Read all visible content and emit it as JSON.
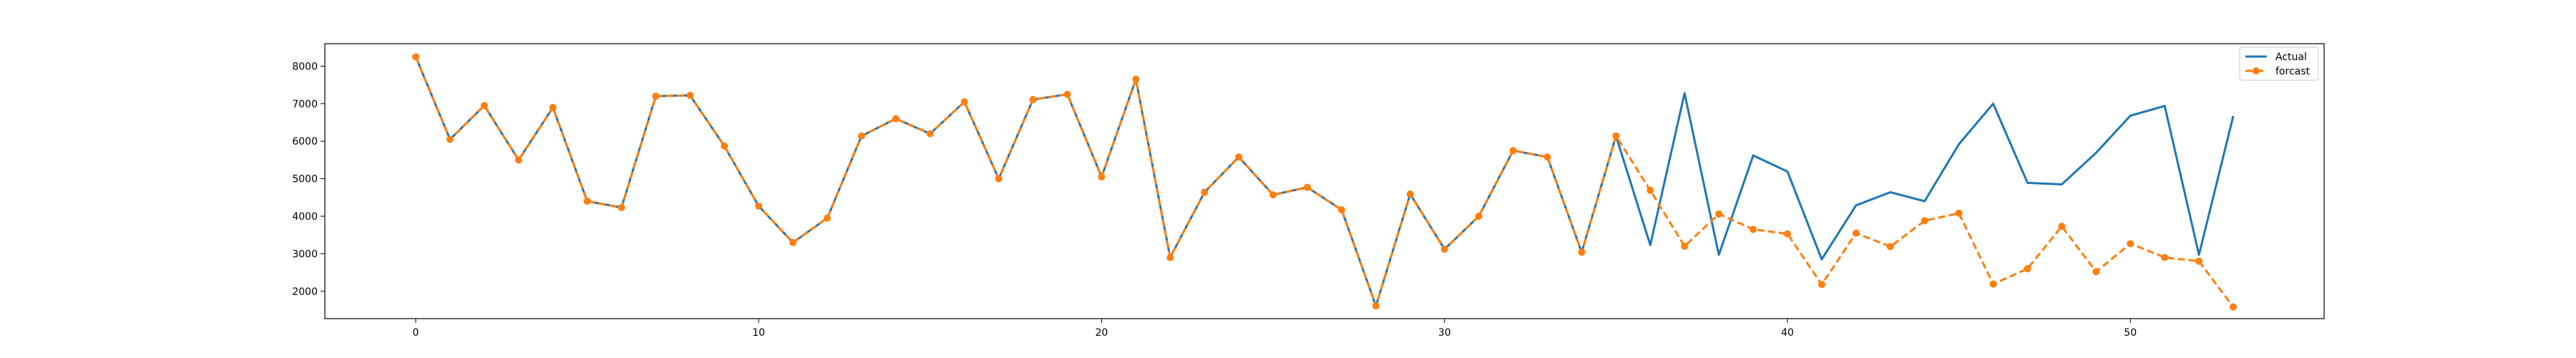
{
  "chart_data": {
    "type": "line",
    "title": "",
    "xlabel": "",
    "ylabel": "",
    "xlim": [
      -2.65,
      55.65
    ],
    "ylim": [
      1270,
      8600
    ],
    "xticks": [
      0,
      10,
      20,
      30,
      40,
      50
    ],
    "yticks": [
      2000,
      3000,
      4000,
      5000,
      6000,
      7000,
      8000
    ],
    "grid": false,
    "legend": {
      "position": "top-right"
    },
    "series": [
      {
        "name": "Actual",
        "color": "#1f77b4",
        "style": "solid",
        "marker": "none",
        "x": [
          0,
          1,
          2,
          3,
          4,
          5,
          6,
          7,
          8,
          9,
          10,
          11,
          12,
          13,
          14,
          15,
          16,
          17,
          18,
          19,
          20,
          21,
          22,
          23,
          24,
          25,
          26,
          27,
          28,
          29,
          30,
          31,
          32,
          33,
          34,
          35,
          36,
          37,
          38,
          39,
          40,
          41,
          42,
          43,
          44,
          45,
          46,
          47,
          48,
          49,
          50,
          51,
          52,
          53
        ],
        "values": [
          8250,
          6050,
          6950,
          5500,
          6900,
          4400,
          4230,
          7200,
          7220,
          5870,
          4270,
          3300,
          3950,
          6140,
          6600,
          6200,
          7050,
          5000,
          7110,
          7250,
          5050,
          7650,
          2900,
          4640,
          5580,
          4570,
          4770,
          4170,
          1610,
          4590,
          3120,
          4000,
          5750,
          5580,
          3040,
          6140,
          3230,
          7280,
          2970,
          5620,
          5190,
          2850,
          4290,
          4640,
          4400,
          5920,
          7000,
          4890,
          4850,
          5690,
          6680,
          6940,
          2970,
          6670
        ]
      },
      {
        "name": "forcast",
        "color": "#ff7f0e",
        "style": "dashed",
        "marker": "circle",
        "x": [
          0,
          1,
          2,
          3,
          4,
          5,
          6,
          7,
          8,
          9,
          10,
          11,
          12,
          13,
          14,
          15,
          16,
          17,
          18,
          19,
          20,
          21,
          22,
          23,
          24,
          25,
          26,
          27,
          28,
          29,
          30,
          31,
          32,
          33,
          34,
          35,
          36,
          37,
          38,
          39,
          40,
          41,
          42,
          43,
          44,
          45,
          46,
          47,
          48,
          49,
          50,
          51,
          52,
          53
        ],
        "values": [
          8250,
          6050,
          6950,
          5500,
          6900,
          4400,
          4230,
          7200,
          7220,
          5870,
          4270,
          3300,
          3950,
          6140,
          6600,
          6200,
          7050,
          5000,
          7110,
          7250,
          5050,
          7650,
          2900,
          4640,
          5580,
          4570,
          4770,
          4170,
          1610,
          4590,
          3120,
          4000,
          5750,
          5580,
          3040,
          6140,
          4690,
          3200,
          4060,
          3650,
          3530,
          2180,
          3550,
          3190,
          3880,
          4080,
          2190,
          2600,
          3730,
          2520,
          3270,
          2900,
          2800,
          1580
        ]
      }
    ]
  }
}
